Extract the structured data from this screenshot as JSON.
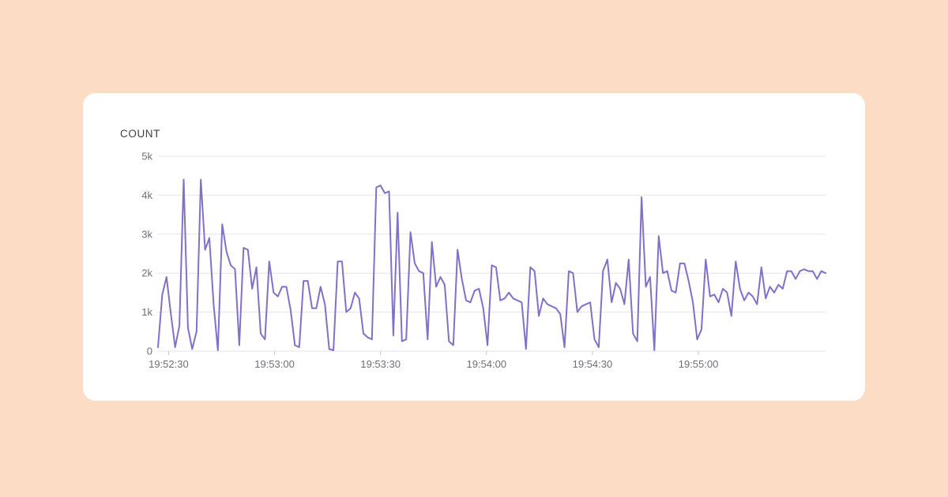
{
  "card": {
    "title": "COUNT"
  },
  "colors": {
    "background": "#fcdcc4",
    "card": "#ffffff",
    "line": "#8270c8",
    "grid": "#e5e5e8",
    "tick_mark": "#c4c4c8",
    "axis_text": "#6e6e78",
    "title_text": "#3c4043"
  },
  "chart_data": {
    "type": "line",
    "title": "COUNT",
    "series_name": "count",
    "legend": "none",
    "grid": true,
    "xlabel": "",
    "ylabel": "",
    "ylim": [
      0,
      5000
    ],
    "y_ticks": [
      {
        "label": "0",
        "value": 0
      },
      {
        "label": "1k",
        "value": 1000
      },
      {
        "label": "2k",
        "value": 2000
      },
      {
        "label": "3k",
        "value": 3000
      },
      {
        "label": "4k",
        "value": 4000
      },
      {
        "label": "5k",
        "value": 5000
      }
    ],
    "x_start": "19:52:27",
    "x_end": "19:55:36",
    "x_span_seconds": 189,
    "x_ticks": [
      {
        "label": "19:52:30",
        "t": 3
      },
      {
        "label": "19:53:00",
        "t": 33
      },
      {
        "label": "19:53:30",
        "t": 63
      },
      {
        "label": "19:54:00",
        "t": 93
      },
      {
        "label": "19:54:30",
        "t": 123
      },
      {
        "label": "19:55:00",
        "t": 153
      }
    ],
    "values": [
      100,
      1450,
      1900,
      950,
      100,
      650,
      4400,
      600,
      50,
      500,
      4400,
      2600,
      2900,
      1200,
      20,
      3250,
      2550,
      2200,
      2100,
      150,
      2650,
      2600,
      1600,
      2150,
      450,
      300,
      2300,
      1500,
      1400,
      1650,
      1650,
      1050,
      150,
      100,
      1800,
      1800,
      1100,
      1100,
      1650,
      1200,
      50,
      20,
      2300,
      2300,
      1000,
      1100,
      1500,
      1350,
      450,
      350,
      300,
      4200,
      4250,
      4050,
      4100,
      400,
      3550,
      250,
      300,
      3050,
      2250,
      2050,
      2000,
      300,
      2800,
      1650,
      1900,
      1700,
      250,
      150,
      2600,
      1850,
      1300,
      1250,
      1550,
      1600,
      1100,
      150,
      2200,
      2150,
      1300,
      1350,
      1500,
      1350,
      1300,
      1250,
      50,
      2150,
      2050,
      900,
      1350,
      1200,
      1150,
      1100,
      950,
      100,
      2050,
      2000,
      1000,
      1150,
      1200,
      1250,
      300,
      100,
      2050,
      2350,
      1250,
      1750,
      1600,
      1200,
      2350,
      450,
      250,
      3950,
      1650,
      1900,
      20,
      2950,
      2000,
      2050,
      1550,
      1500,
      2250,
      2250,
      1800,
      1250,
      300,
      550,
      2350,
      1400,
      1450,
      1250,
      1600,
      1500,
      900,
      2300,
      1600,
      1300,
      1500,
      1400,
      1200,
      2150,
      1350,
      1650,
      1500,
      1700,
      1600,
      2050,
      2050,
      1850,
      2050,
      2100,
      2050,
      2050,
      1850,
      2050,
      2000
    ]
  }
}
